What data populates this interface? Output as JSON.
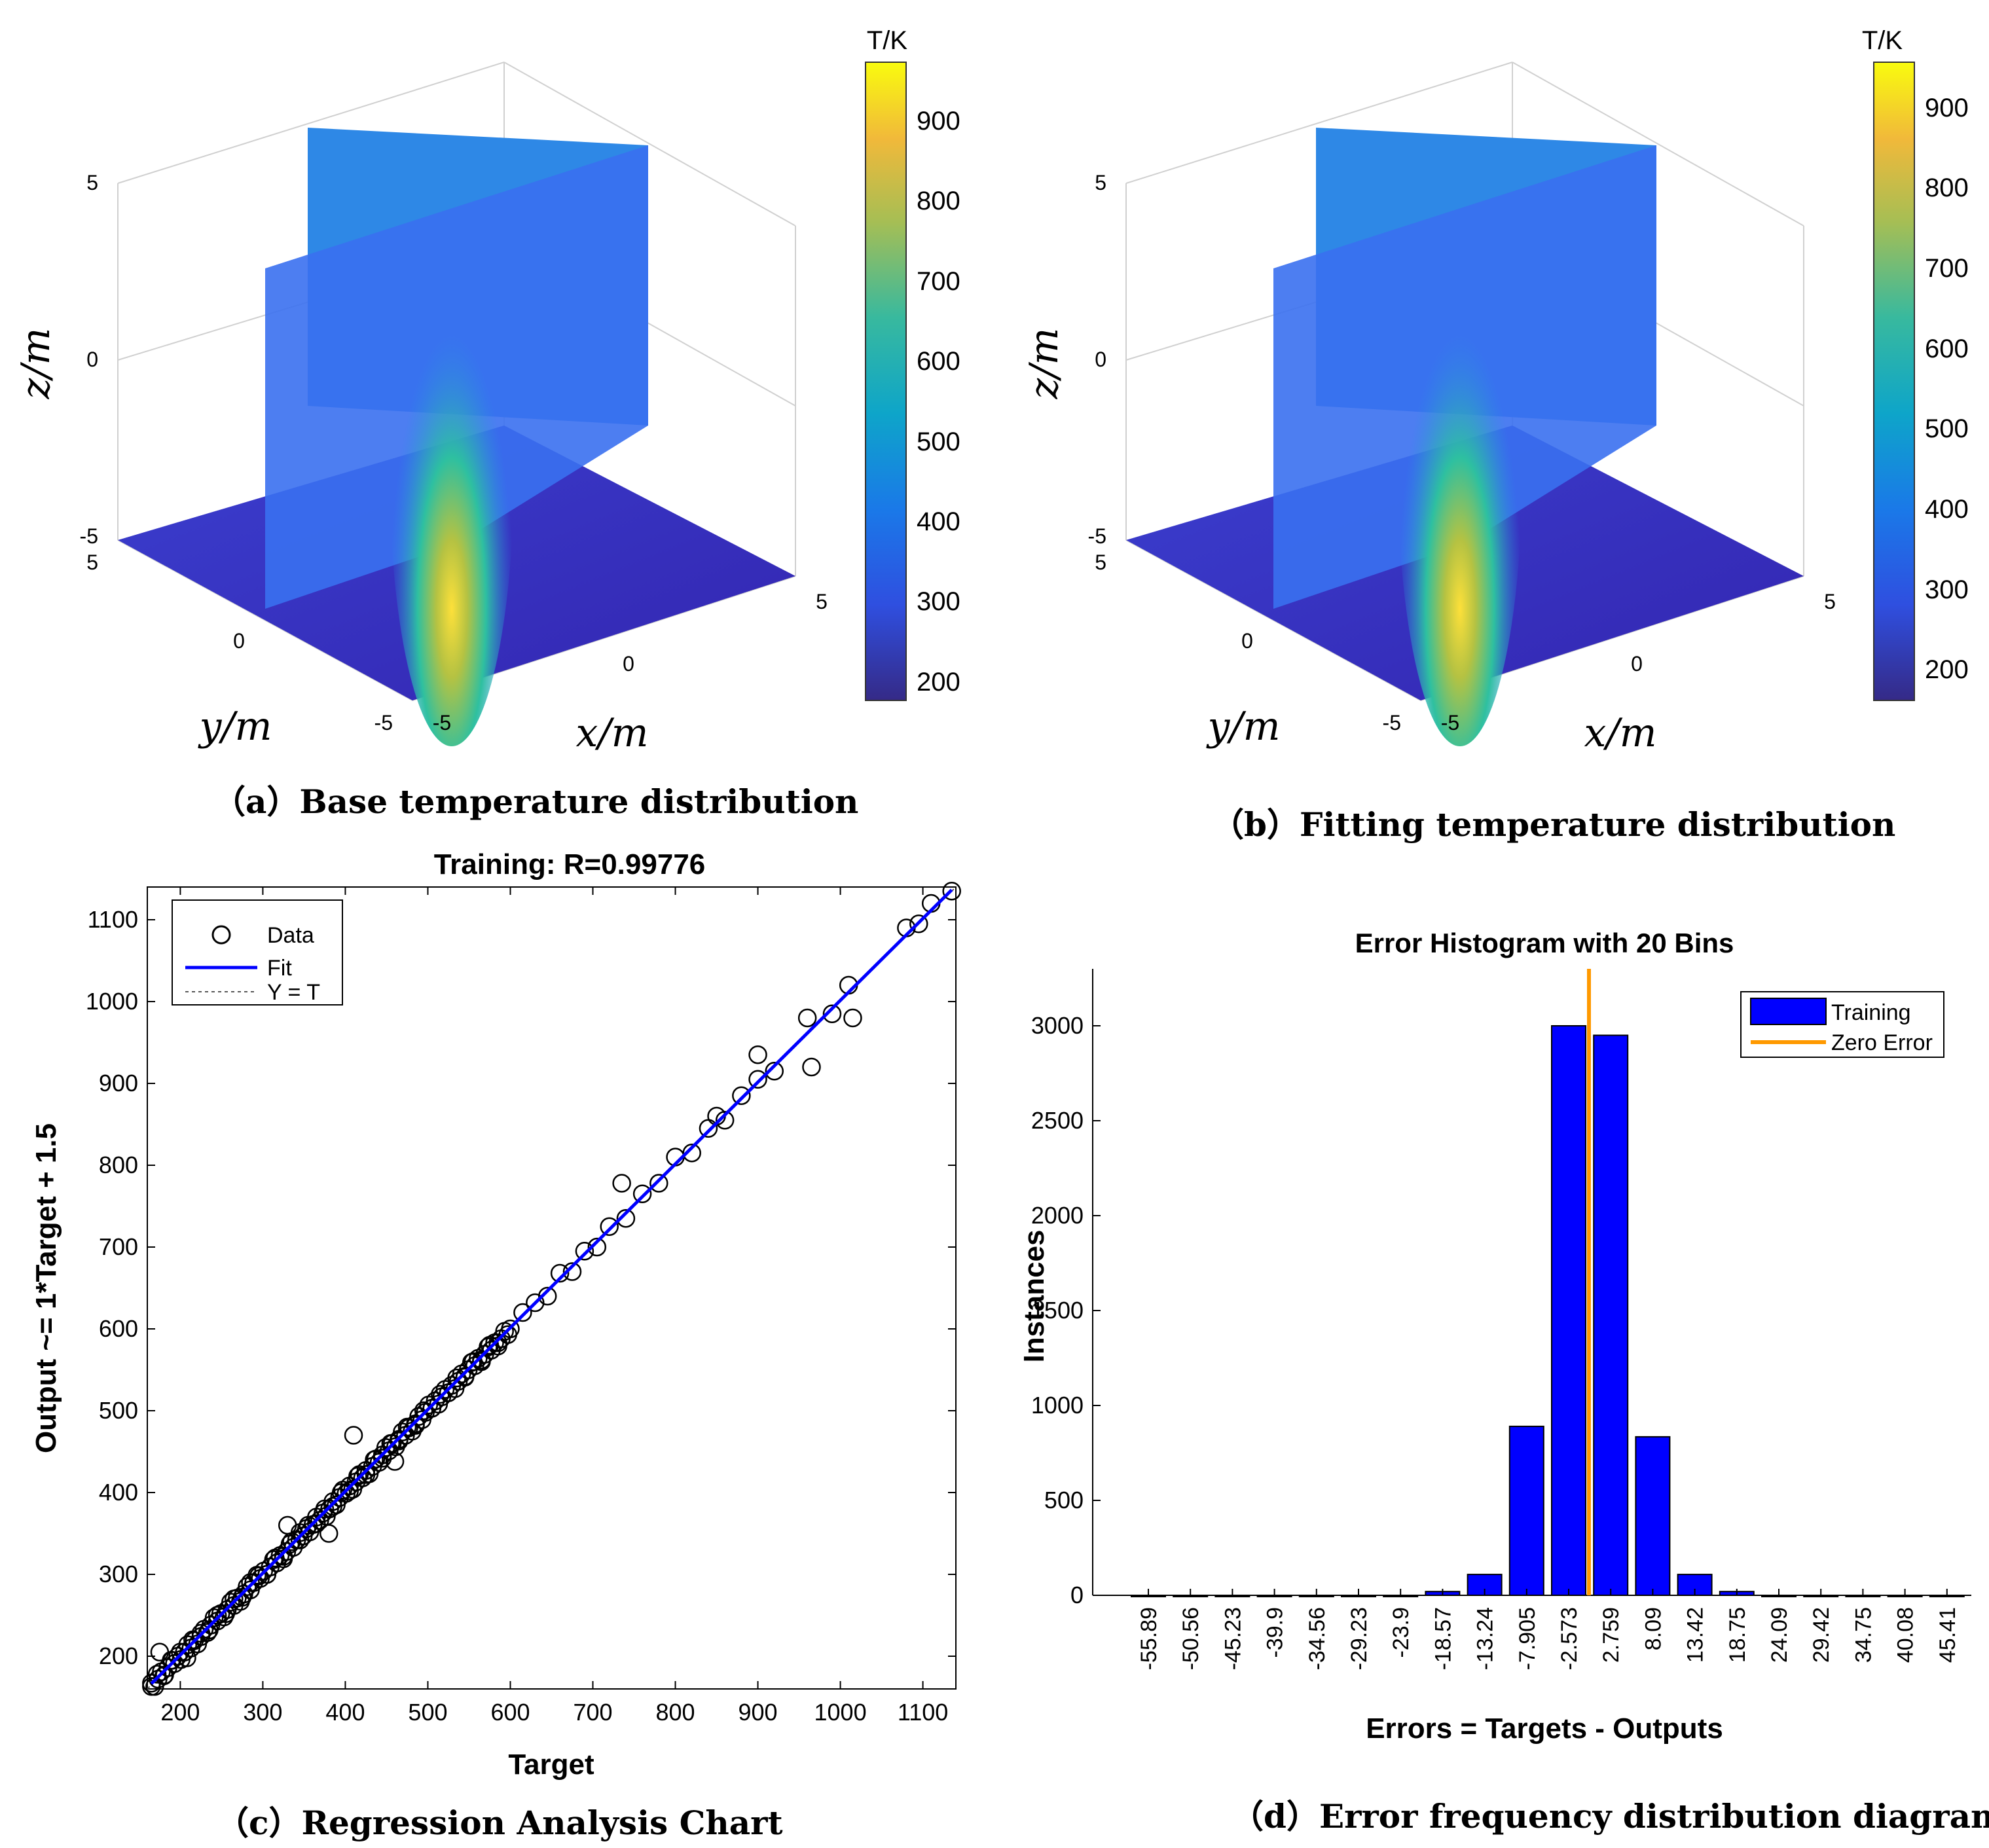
{
  "colors": {
    "blue_bar": "#0000ff",
    "zero_error": "#ff9900",
    "fit_line": "#0000ff"
  },
  "panel_a": {
    "caption": "（a）Base temperature distribution",
    "colorbar_label": "T/K",
    "colorbar_ticks": [
      "900",
      "800",
      "700",
      "600",
      "500",
      "400",
      "300",
      "200"
    ],
    "z_ticks": [
      "5",
      "0",
      "-5"
    ],
    "y_ticks": [
      "5",
      "0",
      "-5"
    ],
    "x_ticks": [
      "-5",
      "0",
      "5"
    ],
    "zlabel": "z/m",
    "ylabel": "y/m",
    "xlabel": "x/m"
  },
  "panel_b": {
    "caption": "（b）Fitting temperature distribution",
    "colorbar_label": "T/K",
    "colorbar_ticks": [
      "900",
      "800",
      "700",
      "600",
      "500",
      "400",
      "300",
      "200"
    ],
    "z_ticks": [
      "5",
      "0",
      "-5"
    ],
    "y_ticks": [
      "5",
      "0",
      "-5"
    ],
    "x_ticks": [
      "-5",
      "0",
      "5"
    ],
    "zlabel": "z/m",
    "ylabel": "y/m",
    "xlabel": "x/m"
  },
  "panel_c": {
    "caption": "（c）Regression Analysis Chart"
  },
  "panel_d": {
    "caption": "（d）Error frequency distribution diagram"
  },
  "chart_data": [
    {
      "type": "scatter",
      "title": "Training: R=0.99776",
      "xlabel": "Target",
      "ylabel": "Output ~= 1*Target + 1.5",
      "xlim": [
        160,
        1140
      ],
      "ylim": [
        160,
        1140
      ],
      "xticks": [
        "200",
        "300",
        "400",
        "500",
        "600",
        "700",
        "800",
        "900",
        "1000",
        "1100"
      ],
      "yticks": [
        "200",
        "300",
        "400",
        "500",
        "600",
        "700",
        "800",
        "900",
        "1000",
        "1100"
      ],
      "legend": [
        "Data",
        "Fit",
        "Y = T"
      ],
      "legend_position": "top-left",
      "fit": {
        "slope": 1,
        "intercept": 1.5
      },
      "points": [
        [
          165,
          163
        ],
        [
          172,
          178
        ],
        [
          180,
          176
        ],
        [
          190,
          195
        ],
        [
          200,
          205
        ],
        [
          208,
          198
        ],
        [
          215,
          220
        ],
        [
          225,
          228
        ],
        [
          235,
          232
        ],
        [
          245,
          250
        ],
        [
          255,
          252
        ],
        [
          265,
          270
        ],
        [
          275,
          272
        ],
        [
          285,
          290
        ],
        [
          295,
          298
        ],
        [
          305,
          300
        ],
        [
          315,
          320
        ],
        [
          325,
          322
        ],
        [
          335,
          340
        ],
        [
          345,
          342
        ],
        [
          355,
          360
        ],
        [
          365,
          362
        ],
        [
          375,
          380
        ],
        [
          385,
          383
        ],
        [
          395,
          400
        ],
        [
          405,
          402
        ],
        [
          415,
          420
        ],
        [
          425,
          422
        ],
        [
          435,
          440
        ],
        [
          445,
          442
        ],
        [
          455,
          460
        ],
        [
          465,
          463
        ],
        [
          475,
          480
        ],
        [
          485,
          482
        ],
        [
          495,
          500
        ],
        [
          505,
          503
        ],
        [
          515,
          520
        ],
        [
          525,
          522
        ],
        [
          535,
          540
        ],
        [
          545,
          542
        ],
        [
          555,
          560
        ],
        [
          565,
          562
        ],
        [
          575,
          580
        ],
        [
          585,
          583
        ],
        [
          600,
          600
        ],
        [
          615,
          620
        ],
        [
          630,
          632
        ],
        [
          645,
          640
        ],
        [
          660,
          668
        ],
        [
          675,
          670
        ],
        [
          690,
          695
        ],
        [
          705,
          700
        ],
        [
          720,
          725
        ],
        [
          740,
          735
        ],
        [
          760,
          765
        ],
        [
          780,
          778
        ],
        [
          800,
          810
        ],
        [
          820,
          815
        ],
        [
          840,
          845
        ],
        [
          860,
          855
        ],
        [
          880,
          885
        ],
        [
          900,
          905
        ],
        [
          920,
          915
        ],
        [
          960,
          980
        ],
        [
          990,
          985
        ],
        [
          1010,
          1020
        ],
        [
          1080,
          1090
        ],
        [
          1110,
          1120
        ],
        [
          1135,
          1135
        ],
        [
          175,
          205
        ],
        [
          410,
          470
        ],
        [
          460,
          438
        ],
        [
          735,
          778
        ],
        [
          965,
          920
        ],
        [
          1015,
          980
        ],
        [
          900,
          935
        ],
        [
          1095,
          1095
        ],
        [
          850,
          860
        ],
        [
          330,
          360
        ],
        [
          380,
          350
        ]
      ]
    },
    {
      "type": "bar",
      "title": "Error Histogram with 20 Bins",
      "xlabel": "Errors = Targets - Outputs",
      "ylabel": "Instances",
      "categories": [
        "-55.89",
        "-50.56",
        "-45.23",
        "-39.9",
        "-34.56",
        "-29.23",
        "-23.9",
        "-18.57",
        "-13.24",
        "-7.905",
        "-2.573",
        "2.759",
        "8.09",
        "13.42",
        "18.75",
        "24.09",
        "29.42",
        "34.75",
        "40.08",
        "45.41"
      ],
      "values": [
        0,
        0,
        0,
        0,
        0,
        0,
        0,
        20,
        110,
        890,
        3000,
        2950,
        835,
        110,
        20,
        0,
        0,
        0,
        0,
        0
      ],
      "yticks": [
        "0",
        "500",
        "1000",
        "1500",
        "2000",
        "2500",
        "3000"
      ],
      "ylim": [
        0,
        3300
      ],
      "zero_error": 0,
      "legend": [
        "Training",
        "Zero Error"
      ],
      "legend_position": "top-right"
    }
  ]
}
